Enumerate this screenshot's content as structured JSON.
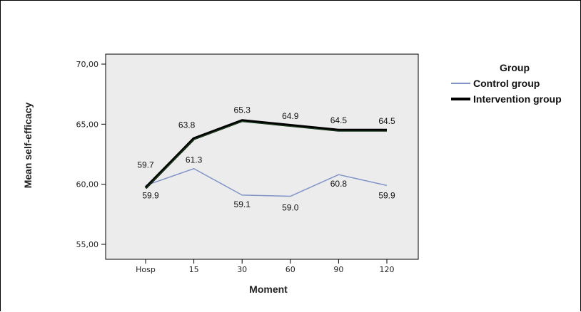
{
  "chart_data": {
    "type": "line",
    "categories": [
      "Hosp",
      "15",
      "30",
      "60",
      "90",
      "120"
    ],
    "series": [
      {
        "name": "Control group",
        "values": [
          59.9,
          61.3,
          59.1,
          59.0,
          60.8,
          59.9
        ],
        "labels": [
          "59.9",
          "61.3",
          "59.1",
          "59.0",
          "60.8",
          "59.9"
        ],
        "color": "#8094c8"
      },
      {
        "name": "Intervention group",
        "values": [
          59.7,
          63.8,
          65.3,
          64.9,
          64.5,
          64.5
        ],
        "labels": [
          "59.7",
          "63.8",
          "65.3",
          "64.9",
          "64.5",
          "64.5"
        ],
        "color": "#000000"
      }
    ],
    "xlabel": "Moment",
    "ylabel": "Mean self-efficacy",
    "ylim": [
      55,
      70
    ],
    "yticks": [
      55,
      60,
      65,
      70
    ],
    "ytick_labels": [
      "55,00",
      "60,00",
      "65,00",
      "70,00"
    ],
    "legend_title": "Group",
    "legend_position": "right",
    "grid": false,
    "plot_background": "#ececec"
  }
}
